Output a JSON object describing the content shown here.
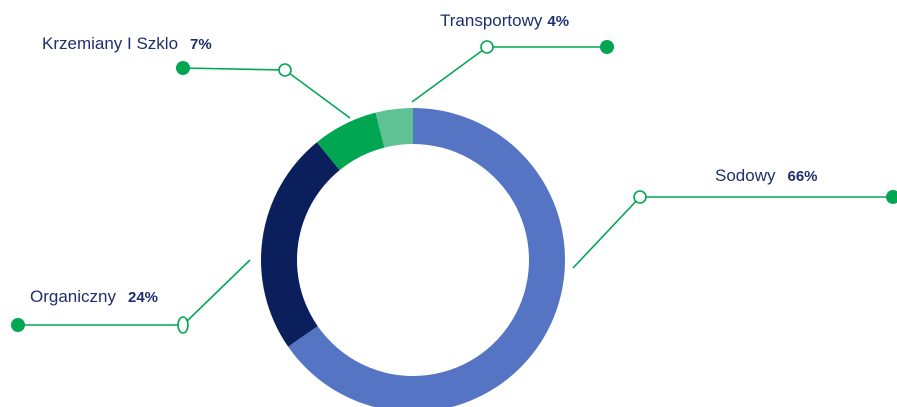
{
  "chart_data": {
    "type": "donut",
    "categories": [
      "Sodowy",
      "Organiczny",
      "Krzemiany I Szklo",
      "Transportowy"
    ],
    "values": [
      66,
      24,
      7,
      4
    ],
    "value_labels": [
      "66%",
      "24%",
      "7%",
      "4%"
    ],
    "colors": [
      "#5574c4",
      "#0a1f5c",
      "#00a651",
      "#5ec295"
    ]
  }
}
